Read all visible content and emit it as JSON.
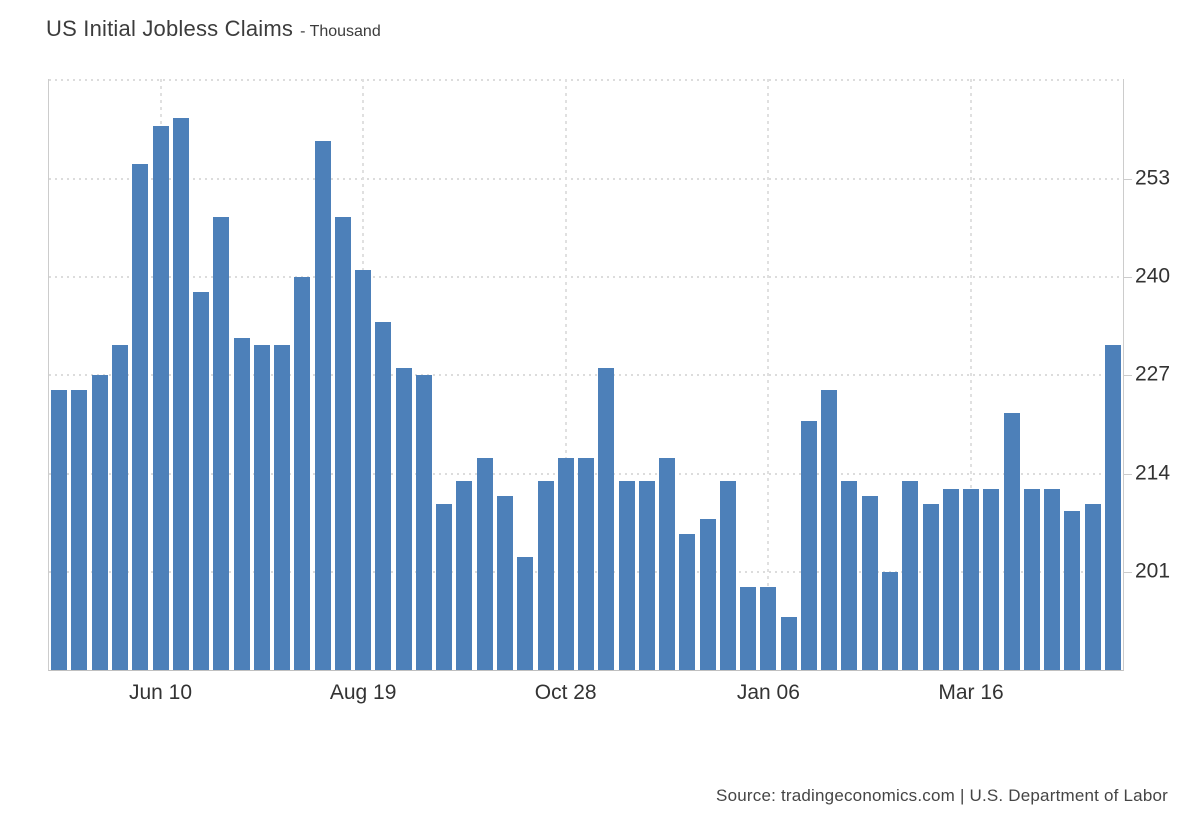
{
  "header": {
    "title": "US Initial Jobless Claims",
    "subtitle": "- Thousand"
  },
  "footer": {
    "source": "Source: tradingeconomics.com | U.S. Department of Labor"
  },
  "chart_data": {
    "type": "bar",
    "title": "US Initial Jobless Claims",
    "subtitle": "- Thousand",
    "ylabel": "",
    "xlabel": "",
    "unit": "Thousand",
    "bar_color": "#4d80b9",
    "grid_color": "#dcdcdc",
    "axis_border_color": "#cccccc",
    "text_color": "#333333",
    "grid": "dotted",
    "legend": "none",
    "y_axis_side": "right",
    "ylim": [
      188,
      266.2
    ],
    "y_ticks": [
      253,
      240,
      227,
      214,
      201
    ],
    "x_ticks": [
      {
        "index": 5,
        "label": "Jun 10"
      },
      {
        "index": 15,
        "label": "Aug 19"
      },
      {
        "index": 25,
        "label": "Oct 28"
      },
      {
        "index": 35,
        "label": "Jan 06"
      },
      {
        "index": 45,
        "label": "Mar 16"
      }
    ],
    "values": [
      225,
      225,
      227,
      231,
      255,
      260,
      261,
      238,
      248,
      232,
      231,
      231,
      240,
      258,
      248,
      241,
      234,
      228,
      227,
      210,
      213,
      216,
      211,
      203,
      213,
      216,
      216,
      228,
      213,
      213,
      216,
      206,
      208,
      213,
      199,
      199,
      195,
      221,
      225,
      213,
      211,
      201,
      213,
      210,
      212,
      212,
      212,
      222,
      212,
      212,
      209,
      210,
      231
    ]
  }
}
